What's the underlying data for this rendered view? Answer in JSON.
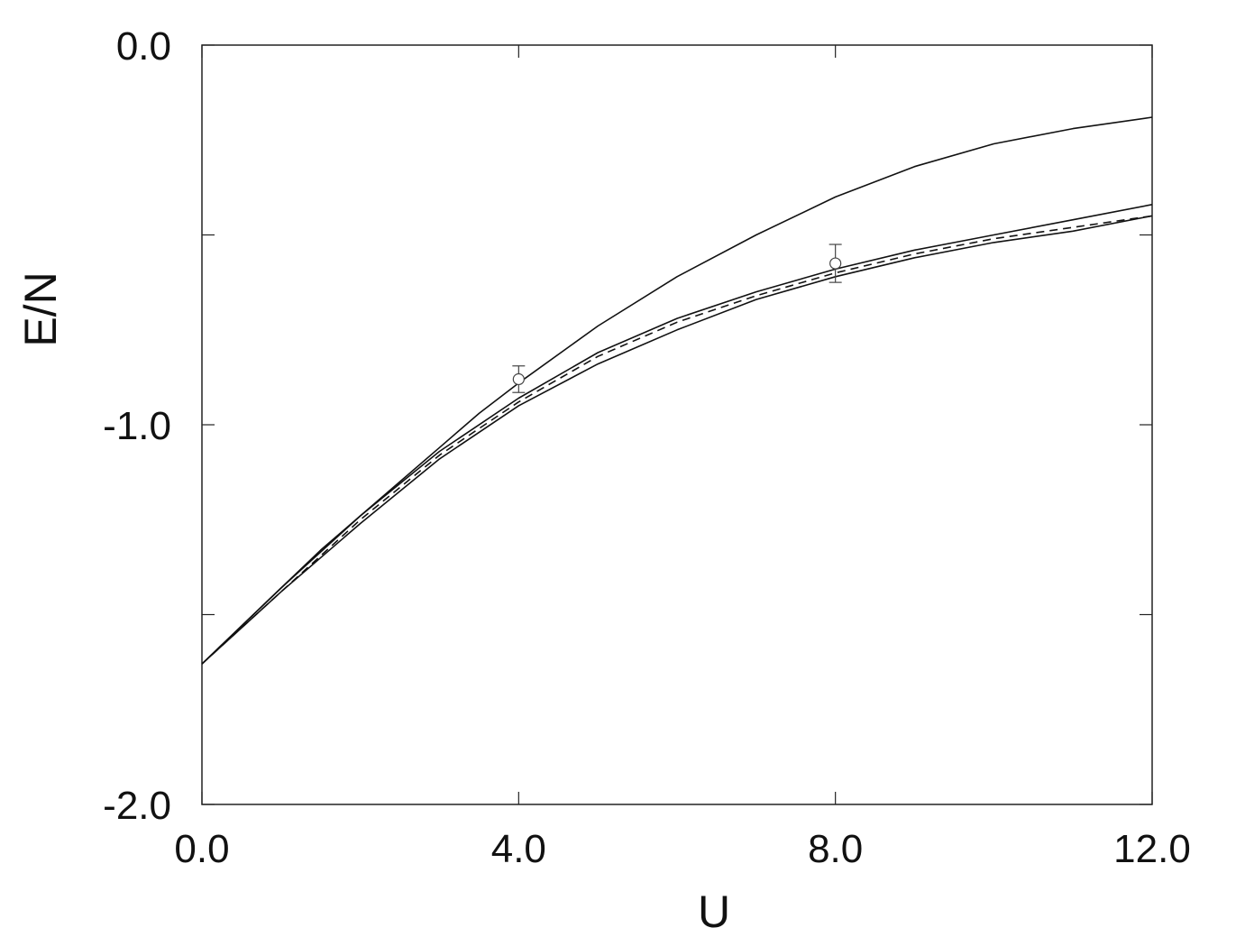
{
  "chart_data": {
    "type": "line",
    "title": "",
    "xlabel": "U",
    "ylabel": "E/N",
    "xlim": [
      0,
      12
    ],
    "ylim": [
      -2.0,
      0.0
    ],
    "x_ticks": [
      0,
      4,
      8,
      12
    ],
    "x_tick_labels": [
      "0.0",
      "4.0",
      "8.0",
      "12.0"
    ],
    "y_ticks": [
      0.0,
      -1.0,
      -2.0
    ],
    "y_tick_labels": [
      "0.0",
      "-1.0",
      "-2.0"
    ],
    "y_minor_ticks": [
      -0.5,
      -1.5
    ],
    "grid": false,
    "legend": "none",
    "series": [
      {
        "style": "solid",
        "x": [
          0,
          0.5,
          1,
          1.5,
          2,
          2.5,
          3,
          3.5,
          4,
          5,
          6,
          7,
          8,
          9,
          10,
          11,
          12
        ],
        "y": [
          -1.63,
          -1.53,
          -1.43,
          -1.33,
          -1.24,
          -1.15,
          -1.06,
          -0.97,
          -0.89,
          -0.74,
          -0.61,
          -0.5,
          -0.4,
          -0.32,
          -0.26,
          -0.22,
          -0.19
        ]
      },
      {
        "style": "solid",
        "x": [
          0,
          1,
          2,
          3,
          4,
          5,
          6,
          7,
          8,
          9,
          10,
          11,
          12
        ],
        "y": [
          -1.63,
          -1.43,
          -1.24,
          -1.07,
          -0.93,
          -0.81,
          -0.72,
          -0.65,
          -0.59,
          -0.54,
          -0.5,
          -0.46,
          -0.42
        ]
      },
      {
        "style": "dashed",
        "x": [
          0,
          1,
          2,
          3,
          4,
          5,
          6,
          7,
          8,
          9,
          10,
          11,
          12
        ],
        "y": [
          -1.63,
          -1.44,
          -1.25,
          -1.08,
          -0.94,
          -0.82,
          -0.73,
          -0.66,
          -0.6,
          -0.55,
          -0.51,
          -0.48,
          -0.45
        ]
      },
      {
        "style": "solid",
        "x": [
          0,
          1,
          2,
          3,
          4,
          5,
          6,
          7,
          8,
          9,
          10,
          11,
          12
        ],
        "y": [
          -1.63,
          -1.44,
          -1.26,
          -1.09,
          -0.95,
          -0.84,
          -0.75,
          -0.67,
          -0.61,
          -0.56,
          -0.52,
          -0.49,
          -0.45
        ]
      }
    ],
    "points": [
      {
        "x": 4.0,
        "y": -0.88,
        "err": 0.035
      },
      {
        "x": 8.0,
        "y": -0.575,
        "err": 0.05
      }
    ]
  }
}
